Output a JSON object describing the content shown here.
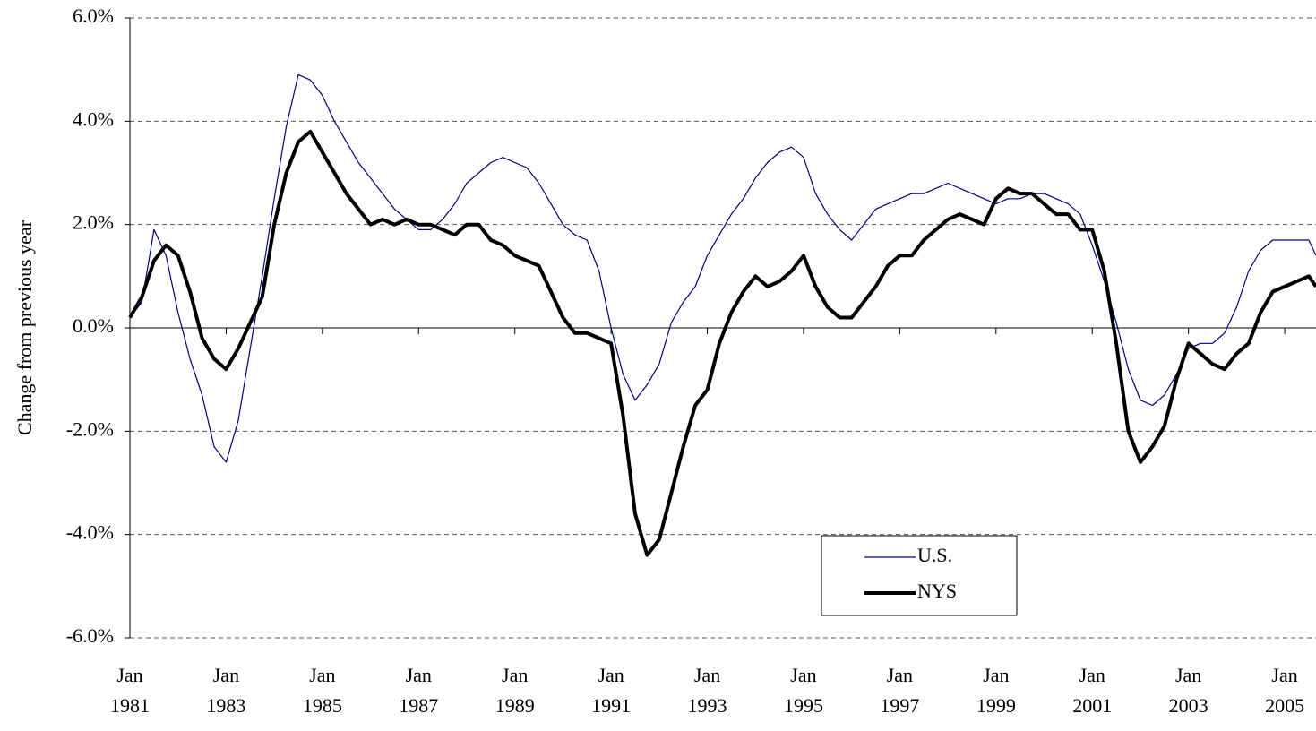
{
  "chart_data": {
    "type": "line",
    "y_label": "Change from previous year",
    "x": [
      1981.0,
      1981.25,
      1981.5,
      1981.75,
      1982.0,
      1982.25,
      1982.5,
      1982.75,
      1983.0,
      1983.25,
      1983.5,
      1983.75,
      1984.0,
      1984.25,
      1984.5,
      1984.75,
      1985.0,
      1985.25,
      1985.5,
      1985.75,
      1986.0,
      1986.25,
      1986.5,
      1986.75,
      1987.0,
      1987.25,
      1987.5,
      1987.75,
      1988.0,
      1988.25,
      1988.5,
      1988.75,
      1989.0,
      1989.25,
      1989.5,
      1989.75,
      1990.0,
      1990.25,
      1990.5,
      1990.75,
      1991.0,
      1991.25,
      1991.5,
      1991.75,
      1992.0,
      1992.25,
      1992.5,
      1992.75,
      1993.0,
      1993.25,
      1993.5,
      1993.75,
      1994.0,
      1994.25,
      1994.5,
      1994.75,
      1995.0,
      1995.25,
      1995.5,
      1995.75,
      1996.0,
      1996.25,
      1996.5,
      1996.75,
      1997.0,
      1997.25,
      1997.5,
      1997.75,
      1998.0,
      1998.25,
      1998.5,
      1998.75,
      1999.0,
      1999.25,
      1999.5,
      1999.75,
      2000.0,
      2000.25,
      2000.5,
      2000.75,
      2001.0,
      2001.25,
      2001.5,
      2001.75,
      2002.0,
      2002.25,
      2002.5,
      2002.75,
      2003.0,
      2003.25,
      2003.5,
      2003.75,
      2004.0,
      2004.25,
      2004.5,
      2004.75,
      2005.0,
      2005.25,
      2005.5,
      2005.65
    ],
    "series": [
      {
        "name": "U.S.",
        "color": "#000080",
        "width": 1.2,
        "values": [
          0.2,
          0.5,
          1.9,
          1.4,
          0.3,
          -0.6,
          -1.3,
          -2.3,
          -2.6,
          -1.8,
          -0.4,
          1.0,
          2.5,
          3.9,
          4.9,
          4.8,
          4.5,
          4.0,
          3.6,
          3.2,
          2.9,
          2.6,
          2.3,
          2.1,
          1.9,
          1.9,
          2.1,
          2.4,
          2.8,
          3.0,
          3.2,
          3.3,
          3.2,
          3.1,
          2.8,
          2.4,
          2.0,
          1.8,
          1.7,
          1.1,
          0.0,
          -0.9,
          -1.4,
          -1.1,
          -0.7,
          0.1,
          0.5,
          0.8,
          1.4,
          1.8,
          2.2,
          2.5,
          2.9,
          3.2,
          3.4,
          3.5,
          3.3,
          2.6,
          2.2,
          1.9,
          1.7,
          2.0,
          2.3,
          2.4,
          2.5,
          2.6,
          2.6,
          2.7,
          2.8,
          2.7,
          2.6,
          2.5,
          2.4,
          2.5,
          2.5,
          2.6,
          2.6,
          2.5,
          2.4,
          2.2,
          1.6,
          0.9,
          0.1,
          -0.8,
          -1.4,
          -1.5,
          -1.3,
          -0.9,
          -0.4,
          -0.3,
          -0.3,
          -0.1,
          0.4,
          1.1,
          1.5,
          1.7,
          1.7,
          1.7,
          1.7,
          1.4
        ]
      },
      {
        "name": "NYS",
        "color": "#000000",
        "width": 4,
        "values": [
          0.2,
          0.6,
          1.3,
          1.6,
          1.4,
          0.7,
          -0.2,
          -0.6,
          -0.8,
          -0.4,
          0.1,
          0.6,
          2.0,
          3.0,
          3.6,
          3.8,
          3.4,
          3.0,
          2.6,
          2.3,
          2.0,
          2.1,
          2.0,
          2.1,
          2.0,
          2.0,
          1.9,
          1.8,
          2.0,
          2.0,
          1.7,
          1.6,
          1.4,
          1.3,
          1.2,
          0.7,
          0.2,
          -0.1,
          -0.1,
          -0.2,
          -0.3,
          -1.7,
          -3.6,
          -4.4,
          -4.1,
          -3.2,
          -2.3,
          -1.5,
          -1.2,
          -0.3,
          0.3,
          0.7,
          1.0,
          0.8,
          0.9,
          1.1,
          1.4,
          0.8,
          0.4,
          0.2,
          0.2,
          0.5,
          0.8,
          1.2,
          1.4,
          1.4,
          1.7,
          1.9,
          2.1,
          2.2,
          2.1,
          2.0,
          2.5,
          2.7,
          2.6,
          2.6,
          2.4,
          2.2,
          2.2,
          1.9,
          1.9,
          1.1,
          -0.3,
          -2.0,
          -2.6,
          -2.3,
          -1.9,
          -1.0,
          -0.3,
          -0.5,
          -0.7,
          -0.8,
          -0.5,
          -0.3,
          0.3,
          0.7,
          0.8,
          0.9,
          1.0,
          0.8
        ]
      }
    ],
    "xlim": [
      1981,
      2005.65
    ],
    "xticks": [
      {
        "value": 1981,
        "label": "Jan 1981"
      },
      {
        "value": 1983,
        "label": "Jan 1983"
      },
      {
        "value": 1985,
        "label": "Jan 1985"
      },
      {
        "value": 1987,
        "label": "Jan 1987"
      },
      {
        "value": 1989,
        "label": "Jan 1989"
      },
      {
        "value": 1991,
        "label": "Jan 1991"
      },
      {
        "value": 1993,
        "label": "Jan 1993"
      },
      {
        "value": 1995,
        "label": "Jan 1995"
      },
      {
        "value": 1997,
        "label": "Jan 1997"
      },
      {
        "value": 1999,
        "label": "Jan 1999"
      },
      {
        "value": 2001,
        "label": "Jan 2001"
      },
      {
        "value": 2003,
        "label": "Jan 2003"
      },
      {
        "value": 2005,
        "label": "Jan 2005"
      }
    ],
    "ylim": [
      -6,
      6
    ],
    "yticks": [
      {
        "value": -6,
        "label": "-6.0%"
      },
      {
        "value": -4,
        "label": "-4.0%"
      },
      {
        "value": -2,
        "label": "-2.0%"
      },
      {
        "value": 0,
        "label": "0.0%"
      },
      {
        "value": 2,
        "label": "2.0%"
      },
      {
        "value": 4,
        "label": "4.0%"
      },
      {
        "value": 6,
        "label": "6.0%"
      }
    ],
    "grid": true
  }
}
